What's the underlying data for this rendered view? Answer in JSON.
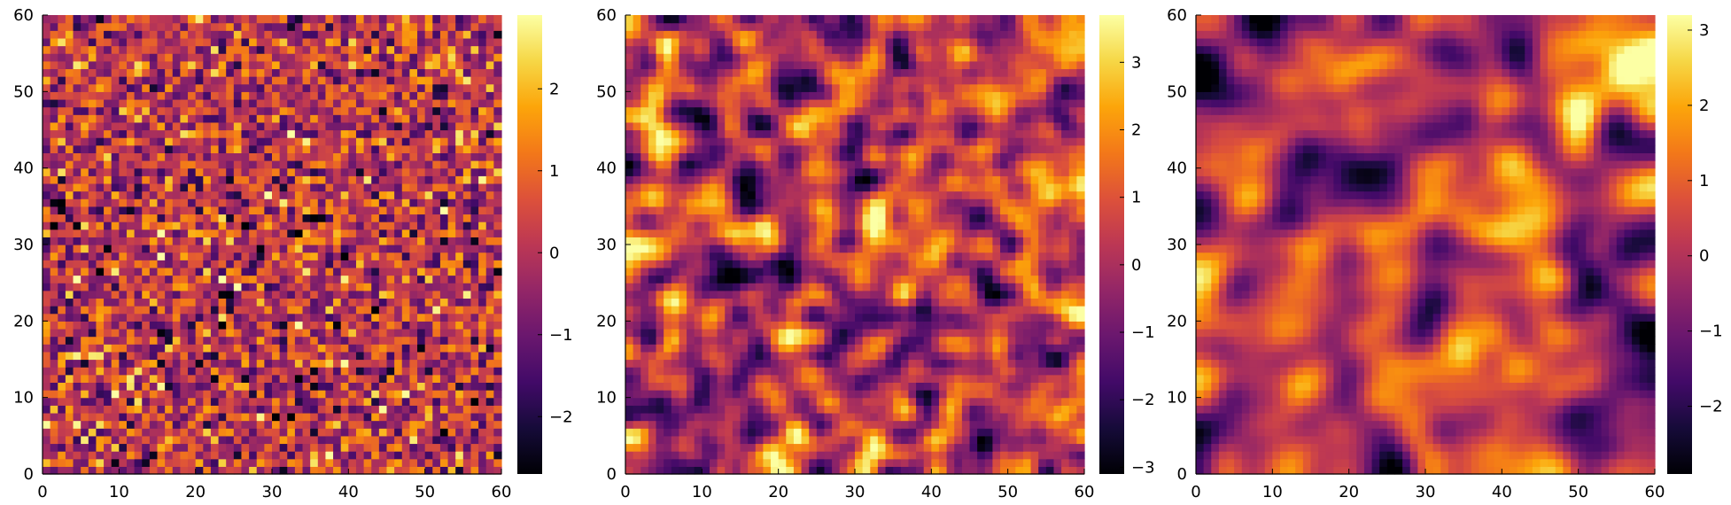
{
  "chart_data": [
    {
      "type": "heatmap",
      "grid_size": 60,
      "seed": 11,
      "smoothing_passes": 0,
      "xlim": [
        0,
        60
      ],
      "ylim": [
        0,
        60
      ],
      "x_ticks": [
        "0",
        "10",
        "20",
        "30",
        "40",
        "50",
        "60"
      ],
      "y_ticks": [
        "0",
        "10",
        "20",
        "30",
        "40",
        "50",
        "60"
      ],
      "color_range": [
        -2.7,
        2.9
      ],
      "colorbar_ticks": [
        "−2",
        "−1",
        "0",
        "1",
        "2"
      ],
      "colorbar_values": [
        -2,
        -1,
        0,
        1,
        2
      ],
      "colormap": "inferno",
      "grid": false
    },
    {
      "type": "heatmap",
      "grid_size": 60,
      "seed": 23,
      "smoothing_passes": 2,
      "xlim": [
        0,
        60
      ],
      "ylim": [
        0,
        60
      ],
      "x_ticks": [
        "0",
        "10",
        "20",
        "30",
        "40",
        "50",
        "60"
      ],
      "y_ticks": [
        "0",
        "10",
        "20",
        "30",
        "40",
        "50",
        "60"
      ],
      "color_range": [
        -3.1,
        3.7
      ],
      "colorbar_ticks": [
        "−3",
        "−2",
        "−1",
        "0",
        "1",
        "2",
        "3"
      ],
      "colorbar_values": [
        -3,
        -2,
        -1,
        0,
        1,
        2,
        3
      ],
      "colormap": "inferno",
      "grid": false
    },
    {
      "type": "heatmap",
      "grid_size": 60,
      "seed": 37,
      "smoothing_passes": 6,
      "xlim": [
        0,
        60
      ],
      "ylim": [
        0,
        60
      ],
      "x_ticks": [
        "0",
        "10",
        "20",
        "30",
        "40",
        "50",
        "60"
      ],
      "y_ticks": [
        "0",
        "10",
        "20",
        "30",
        "40",
        "50",
        "60"
      ],
      "color_range": [
        -2.9,
        3.2
      ],
      "colorbar_ticks": [
        "−2",
        "−1",
        "0",
        "1",
        "2",
        "3"
      ],
      "colorbar_values": [
        -2,
        -1,
        0,
        1,
        2,
        3
      ],
      "colormap": "inferno",
      "grid": false
    }
  ]
}
